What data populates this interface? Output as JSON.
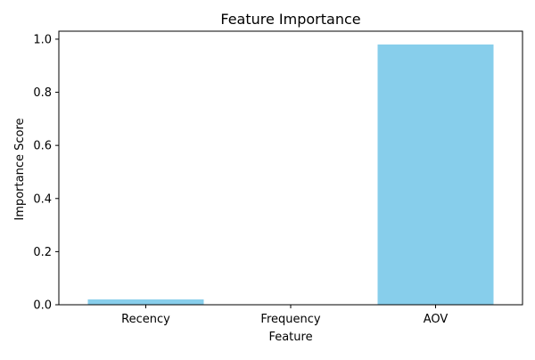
{
  "chart_data": {
    "type": "bar",
    "title": "Feature Importance",
    "xlabel": "Feature",
    "ylabel": "Importance Score",
    "categories": [
      "Recency",
      "Frequency",
      "AOV"
    ],
    "values": [
      0.02,
      0.0,
      0.98
    ],
    "ylim": [
      0,
      1.03
    ],
    "yticks": [
      0.0,
      0.2,
      0.4,
      0.6,
      0.8,
      1.0
    ],
    "ytick_labels": [
      "0.0",
      "0.2",
      "0.4",
      "0.6",
      "0.8",
      "1.0"
    ],
    "grid": false,
    "legend": "none",
    "bar_color": "#87CEEB"
  }
}
